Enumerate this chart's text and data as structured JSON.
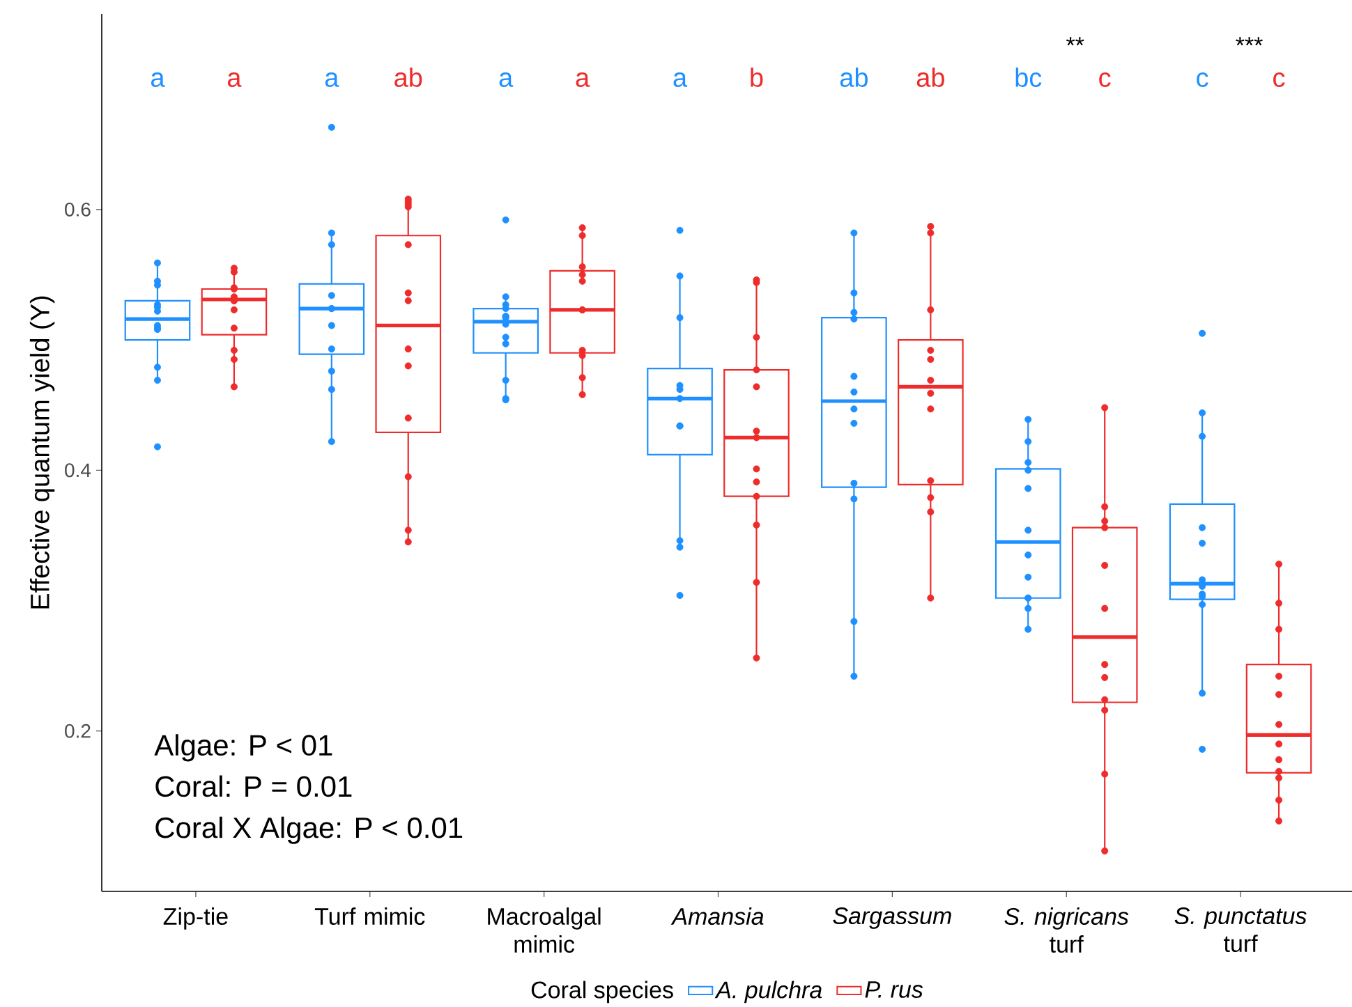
{
  "chart_data": {
    "type": "box",
    "ylabel": "Effective quantum yield (Y)",
    "legend_title": "Coral species",
    "legend": "bottom",
    "grid": false,
    "marker": "circle",
    "categories": [
      "Zip-tie",
      "Turf mimic",
      "Macroalgal mimic",
      "*Amansia*",
      "*Sargassum*",
      "*S. nigricans* turf",
      "*S. punctatus* turf"
    ],
    "ylim": [
      0.077,
      0.75
    ],
    "yticks": [
      0.2,
      0.4,
      0.6
    ],
    "series": [
      {
        "name": "*A. pulchra*",
        "color": "#1e90ff",
        "value_labels": [
          "a",
          "a",
          "a",
          "a",
          "ab",
          "bc",
          "c"
        ],
        "boxes": [
          {
            "low": 0.47,
            "q1": 0.5,
            "median": 0.516,
            "q3": 0.53,
            "high": 0.559
          },
          {
            "low": 0.422,
            "q1": 0.489,
            "median": 0.524,
            "q3": 0.543,
            "high": 0.582
          },
          {
            "low": 0.454,
            "q1": 0.49,
            "median": 0.514,
            "q3": 0.524,
            "high": 0.533
          },
          {
            "low": 0.343,
            "q1": 0.412,
            "median": 0.455,
            "q3": 0.478,
            "high": 0.549
          },
          {
            "low": 0.242,
            "q1": 0.387,
            "median": 0.453,
            "q3": 0.517,
            "high": 0.582
          },
          {
            "low": 0.278,
            "q1": 0.302,
            "median": 0.345,
            "q3": 0.401,
            "high": 0.439
          },
          {
            "low": 0.229,
            "q1": 0.301,
            "median": 0.313,
            "q3": 0.374,
            "high": 0.444
          }
        ]
      },
      {
        "name": "*P. rus*",
        "color": "#ee2c2c",
        "value_labels": [
          "a",
          "ab",
          "a",
          "b",
          "ab",
          "c",
          "c"
        ],
        "boxes": [
          {
            "low": 0.464,
            "q1": 0.504,
            "median": 0.531,
            "q3": 0.539,
            "high": 0.555
          },
          {
            "low": 0.345,
            "q1": 0.429,
            "median": 0.511,
            "q3": 0.58,
            "high": 0.608
          },
          {
            "low": 0.458,
            "q1": 0.49,
            "median": 0.523,
            "q3": 0.553,
            "high": 0.586
          },
          {
            "low": 0.256,
            "q1": 0.38,
            "median": 0.425,
            "q3": 0.477,
            "high": 0.545
          },
          {
            "low": 0.302,
            "q1": 0.389,
            "median": 0.464,
            "q3": 0.5,
            "high": 0.587
          },
          {
            "low": 0.108,
            "q1": 0.222,
            "median": 0.272,
            "q3": 0.356,
            "high": 0.448
          },
          {
            "low": 0.131,
            "q1": 0.168,
            "median": 0.197,
            "q3": 0.251,
            "high": 0.328
          }
        ]
      },
      {
        "type": "scatter",
        "color": "#1e90ff",
        "x": [
          "Zip-tie",
          "Zip-tie",
          "Zip-tie",
          "Zip-tie",
          "Zip-tie",
          "Zip-tie",
          "Zip-tie",
          "Zip-tie",
          "Zip-tie",
          "Zip-tie",
          "Zip-tie",
          "Zip-tie",
          "Turf mimic",
          "Turf mimic",
          "Turf mimic",
          "Turf mimic",
          "Turf mimic",
          "Turf mimic",
          "Turf mimic",
          "Turf mimic",
          "Turf mimic",
          "Turf mimic",
          "Turf mimic",
          "Macroalgal mimic",
          "Macroalgal mimic",
          "Macroalgal mimic",
          "Macroalgal mimic",
          "Macroalgal mimic",
          "Macroalgal mimic",
          "Macroalgal mimic",
          "Macroalgal mimic",
          "Macroalgal mimic",
          "Macroalgal mimic",
          "Macroalgal mimic",
          "Macroalgal mimic",
          "Macroalgal mimic",
          "*Amansia*",
          "*Amansia*",
          "*Amansia*",
          "*Amansia*",
          "*Amansia*",
          "*Amansia*",
          "*Amansia*",
          "*Amansia*",
          "*Amansia*",
          "*Amansia*",
          "*Amansia*",
          "*Sargassum*",
          "*Sargassum*",
          "*Sargassum*",
          "*Sargassum*",
          "*Sargassum*",
          "*Sargassum*",
          "*Sargassum*",
          "*Sargassum*",
          "*Sargassum*",
          "*Sargassum*",
          "*Sargassum*",
          "*Sargassum*",
          "*S. nigricans* turf",
          "*S. nigricans* turf",
          "*S. nigricans* turf",
          "*S. nigricans* turf",
          "*S. nigricans* turf",
          "*S. nigricans* turf",
          "*S. nigricans* turf",
          "*S. nigricans* turf",
          "*S. nigricans* turf",
          "*S. nigricans* turf",
          "*S. nigricans* turf",
          "*S. nigricans* turf",
          "*S. punctatus* turf",
          "*S. punctatus* turf",
          "*S. punctatus* turf",
          "*S. punctatus* turf",
          "*S. punctatus* turf",
          "*S. punctatus* turf",
          "*S. punctatus* turf",
          "*S. punctatus* turf",
          "*S. punctatus* turf",
          "*S. punctatus* turf",
          "*S. punctatus* turf",
          "*S. punctatus* turf"
        ],
        "values": [
          0.559,
          0.542,
          0.545,
          0.527,
          0.525,
          0.522,
          0.511,
          0.509,
          0.508,
          0.479,
          0.469,
          0.418,
          0.663,
          0.582,
          0.573,
          0.534,
          0.524,
          0.524,
          0.511,
          0.493,
          0.476,
          0.462,
          0.422,
          0.592,
          0.533,
          0.527,
          0.524,
          0.518,
          0.518,
          0.517,
          0.512,
          0.502,
          0.497,
          0.469,
          0.455,
          0.454,
          0.584,
          0.549,
          0.517,
          0.465,
          0.462,
          0.455,
          0.434,
          0.434,
          0.346,
          0.341,
          0.304,
          0.582,
          0.536,
          0.521,
          0.516,
          0.472,
          0.46,
          0.447,
          0.436,
          0.39,
          0.378,
          0.284,
          0.242,
          0.439,
          0.422,
          0.406,
          0.4,
          0.386,
          0.354,
          0.335,
          0.318,
          0.302,
          0.302,
          0.294,
          0.278,
          0.505,
          0.444,
          0.426,
          0.356,
          0.344,
          0.316,
          0.311,
          0.305,
          0.303,
          0.297,
          0.229,
          0.186
        ]
      },
      {
        "type": "scatter",
        "color": "#ee2c2c",
        "x": [
          "Zip-tie",
          "Zip-tie",
          "Zip-tie",
          "Zip-tie",
          "Zip-tie",
          "Zip-tie",
          "Zip-tie",
          "Zip-tie",
          "Zip-tie",
          "Zip-tie",
          "Zip-tie",
          "Zip-tie",
          "Turf mimic",
          "Turf mimic",
          "Turf mimic",
          "Turf mimic",
          "Turf mimic",
          "Turf mimic",
          "Turf mimic",
          "Turf mimic",
          "Turf mimic",
          "Turf mimic",
          "Turf mimic",
          "Turf mimic",
          "Turf mimic",
          "Macroalgal mimic",
          "Macroalgal mimic",
          "Macroalgal mimic",
          "Macroalgal mimic",
          "Macroalgal mimic",
          "Macroalgal mimic",
          "Macroalgal mimic",
          "Macroalgal mimic",
          "Macroalgal mimic",
          "Macroalgal mimic",
          "Macroalgal mimic",
          "*Amansia*",
          "*Amansia*",
          "*Amansia*",
          "*Amansia*",
          "*Amansia*",
          "*Amansia*",
          "*Amansia*",
          "*Amansia*",
          "*Amansia*",
          "*Amansia*",
          "*Amansia*",
          "*Amansia*",
          "*Amansia*",
          "*Sargassum*",
          "*Sargassum*",
          "*Sargassum*",
          "*Sargassum*",
          "*Sargassum*",
          "*Sargassum*",
          "*Sargassum*",
          "*Sargassum*",
          "*Sargassum*",
          "*Sargassum*",
          "*Sargassum*",
          "*Sargassum*",
          "*S. nigricans* turf",
          "*S. nigricans* turf",
          "*S. nigricans* turf",
          "*S. nigricans* turf",
          "*S. nigricans* turf",
          "*S. nigricans* turf",
          "*S. nigricans* turf",
          "*S. nigricans* turf",
          "*S. nigricans* turf",
          "*S. nigricans* turf",
          "*S. nigricans* turf",
          "*S. nigricans* turf",
          "*S. punctatus* turf",
          "*S. punctatus* turf",
          "*S. punctatus* turf",
          "*S. punctatus* turf",
          "*S. punctatus* turf",
          "*S. punctatus* turf",
          "*S. punctatus* turf",
          "*S. punctatus* turf",
          "*S. punctatus* turf",
          "*S. punctatus* turf",
          "*S. punctatus* turf",
          "*S. punctatus* turf"
        ],
        "values": [
          0.555,
          0.552,
          0.54,
          0.539,
          0.533,
          0.53,
          0.53,
          0.523,
          0.509,
          0.492,
          0.485,
          0.464,
          0.608,
          0.606,
          0.604,
          0.602,
          0.573,
          0.536,
          0.53,
          0.493,
          0.48,
          0.44,
          0.395,
          0.354,
          0.345,
          0.586,
          0.58,
          0.556,
          0.55,
          0.545,
          0.523,
          0.523,
          0.492,
          0.488,
          0.471,
          0.458,
          0.546,
          0.544,
          0.502,
          0.477,
          0.464,
          0.43,
          0.425,
          0.401,
          0.391,
          0.38,
          0.358,
          0.314,
          0.256,
          0.587,
          0.582,
          0.523,
          0.492,
          0.485,
          0.469,
          0.459,
          0.447,
          0.392,
          0.379,
          0.368,
          0.302,
          0.448,
          0.372,
          0.361,
          0.356,
          0.327,
          0.294,
          0.251,
          0.241,
          0.224,
          0.216,
          0.167,
          0.108,
          0.328,
          0.298,
          0.278,
          0.242,
          0.228,
          0.205,
          0.19,
          0.178,
          0.169,
          0.164,
          0.147,
          0.131
        ]
      }
    ],
    "annotations": [
      "**",
      "***",
      "Algae: P < 01",
      "Coral: P = 0.01",
      "Coral X Algae: P < 0.01"
    ]
  }
}
